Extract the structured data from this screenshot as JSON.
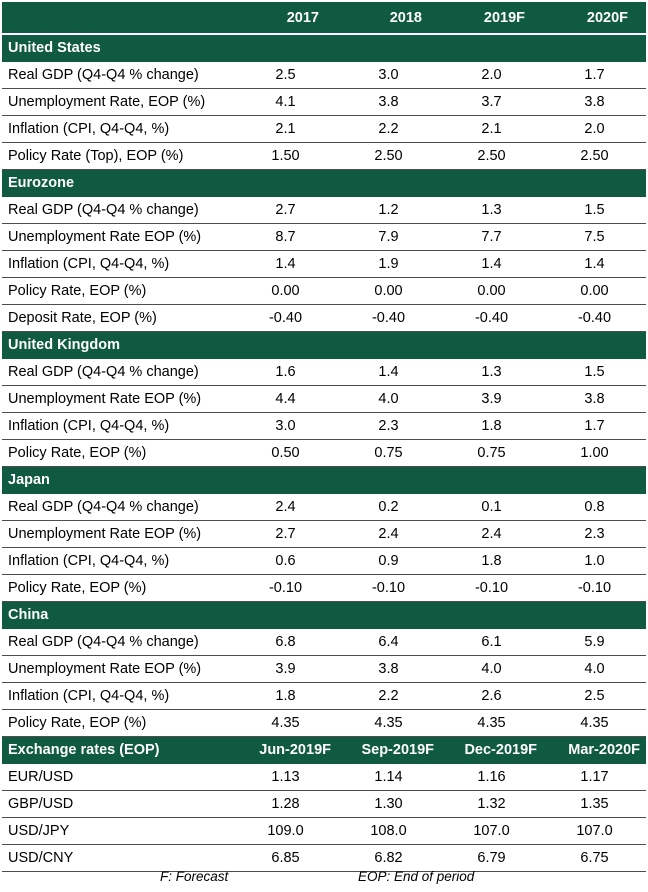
{
  "header": {
    "label": "",
    "years": [
      "2017",
      "2018",
      "2019F",
      "2020F"
    ]
  },
  "sections": [
    {
      "name": "United States",
      "rows": [
        {
          "label": "Real GDP (Q4-Q4 % change)",
          "values": [
            "2.5",
            "3.0",
            "2.0",
            "1.7"
          ]
        },
        {
          "label": "Unemployment Rate, EOP (%)",
          "values": [
            "4.1",
            "3.8",
            "3.7",
            "3.8"
          ]
        },
        {
          "label": "Inflation (CPI, Q4-Q4, %)",
          "values": [
            "2.1",
            "2.2",
            "2.1",
            "2.0"
          ]
        },
        {
          "label": "Policy Rate (Top), EOP (%)",
          "values": [
            "1.50",
            "2.50",
            "2.50",
            "2.50"
          ]
        }
      ]
    },
    {
      "name": "Eurozone",
      "rows": [
        {
          "label": "Real GDP (Q4-Q4 % change)",
          "values": [
            "2.7",
            "1.2",
            "1.3",
            "1.5"
          ]
        },
        {
          "label": "Unemployment Rate EOP (%)",
          "values": [
            "8.7",
            "7.9",
            "7.7",
            "7.5"
          ]
        },
        {
          "label": "Inflation (CPI, Q4-Q4, %)",
          "values": [
            "1.4",
            "1.9",
            "1.4",
            "1.4"
          ]
        },
        {
          "label": "Policy Rate, EOP (%)",
          "values": [
            "0.00",
            "0.00",
            "0.00",
            "0.00"
          ]
        },
        {
          "label": "Deposit Rate, EOP (%)",
          "values": [
            "-0.40",
            "-0.40",
            "-0.40",
            "-0.40"
          ]
        }
      ]
    },
    {
      "name": "United Kingdom",
      "rows": [
        {
          "label": "Real GDP (Q4-Q4 % change)",
          "values": [
            "1.6",
            "1.4",
            "1.3",
            "1.5"
          ]
        },
        {
          "label": "Unemployment Rate EOP (%)",
          "values": [
            "4.4",
            "4.0",
            "3.9",
            "3.8"
          ]
        },
        {
          "label": "Inflation (CPI, Q4-Q4, %)",
          "values": [
            "3.0",
            "2.3",
            "1.8",
            "1.7"
          ]
        },
        {
          "label": "Policy Rate, EOP (%)",
          "values": [
            "0.50",
            "0.75",
            "0.75",
            "1.00"
          ]
        }
      ]
    },
    {
      "name": "Japan",
      "rows": [
        {
          "label": "Real GDP (Q4-Q4 % change)",
          "values": [
            "2.4",
            "0.2",
            "0.1",
            "0.8"
          ]
        },
        {
          "label": "Unemployment Rate EOP (%)",
          "values": [
            "2.7",
            "2.4",
            "2.4",
            "2.3"
          ]
        },
        {
          "label": "Inflation (CPI, Q4-Q4, %)",
          "values": [
            "0.6",
            "0.9",
            "1.8",
            "1.0"
          ]
        },
        {
          "label": "Policy Rate, EOP (%)",
          "values": [
            "-0.10",
            "-0.10",
            "-0.10",
            "-0.10"
          ]
        }
      ]
    },
    {
      "name": "China",
      "rows": [
        {
          "label": "Real GDP (Q4-Q4 % change)",
          "values": [
            "6.8",
            "6.4",
            "6.1",
            "5.9"
          ]
        },
        {
          "label": "Unemployment Rate EOP (%)",
          "values": [
            "3.9",
            "3.8",
            "4.0",
            "4.0"
          ]
        },
        {
          "label": "Inflation (CPI, Q4-Q4, %)",
          "values": [
            "1.8",
            "2.2",
            "2.6",
            "2.5"
          ]
        },
        {
          "label": "Policy Rate, EOP (%)",
          "values": [
            "4.35",
            "4.35",
            "4.35",
            "4.35"
          ]
        }
      ]
    }
  ],
  "fx": {
    "title": "Exchange rates (EOP)",
    "periods": [
      "Jun-2019F",
      "Sep-2019F",
      "Dec-2019F",
      "Mar-2020F"
    ],
    "rows": [
      {
        "label": "EUR/USD",
        "values": [
          "1.13",
          "1.14",
          "1.16",
          "1.17"
        ]
      },
      {
        "label": "GBP/USD",
        "values": [
          "1.28",
          "1.30",
          "1.32",
          "1.35"
        ]
      },
      {
        "label": "USD/JPY",
        "values": [
          "109.0",
          "108.0",
          "107.0",
          "107.0"
        ]
      },
      {
        "label": "USD/CNY",
        "values": [
          "6.85",
          "6.82",
          "6.79",
          "6.75"
        ]
      }
    ]
  },
  "footnotes": {
    "forecast": "F: Forecast",
    "eop": "EOP: End of period"
  },
  "colors": {
    "header_green": "#0f5a40"
  }
}
